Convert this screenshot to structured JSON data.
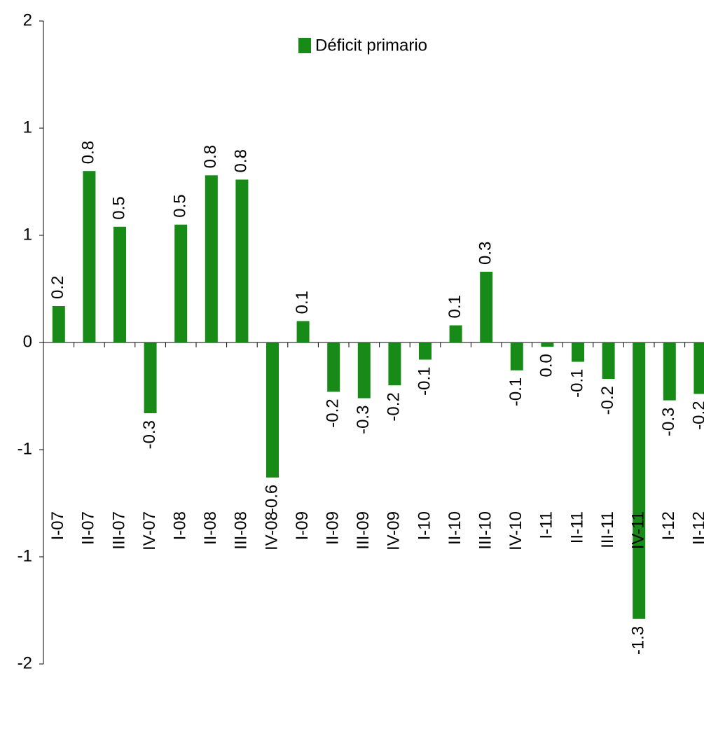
{
  "chart_data": {
    "type": "bar",
    "legend": "Déficit primario",
    "color": "#178a17",
    "categories": [
      "I-07",
      "II-07",
      "III-07",
      "IV-07",
      "I-08",
      "II-08",
      "III-08",
      "IV-08",
      "I-09",
      "II-09",
      "III-09",
      "IV-09",
      "I-10",
      "II-10",
      "III-10",
      "IV-10",
      "I-11",
      "II-11",
      "III-11",
      "IV-11",
      "I-12",
      "II-12"
    ],
    "values": [
      0.17,
      0.8,
      0.54,
      -0.33,
      0.55,
      0.78,
      0.76,
      -0.63,
      0.1,
      -0.23,
      -0.26,
      -0.2,
      -0.08,
      0.08,
      0.33,
      -0.13,
      -0.02,
      -0.09,
      -0.17,
      -1.29,
      -0.27,
      -0.24
    ],
    "value_labels": [
      "0.2",
      "0.8",
      "0.5",
      "-0.3",
      "0.5",
      "0.8",
      "0.8",
      "-0.6",
      "0.1",
      "-0.2",
      "-0.3",
      "-0.2",
      "-0.1",
      "0.1",
      "0.3",
      "-0.1",
      "0.0",
      "-0.1",
      "-0.2",
      "-1.3",
      "-0.3",
      "-0.2"
    ],
    "ylim": [
      -1.5,
      1.5
    ],
    "yticks": [
      {
        "value": 1.5,
        "label": "2"
      },
      {
        "value": 1,
        "label": "1"
      },
      {
        "value": 0.5,
        "label": "1"
      },
      0,
      {
        "value": -0.5,
        "label": "-1"
      },
      {
        "value": -1,
        "label": "-1"
      },
      {
        "value": -1.5,
        "label": "-2"
      }
    ]
  }
}
